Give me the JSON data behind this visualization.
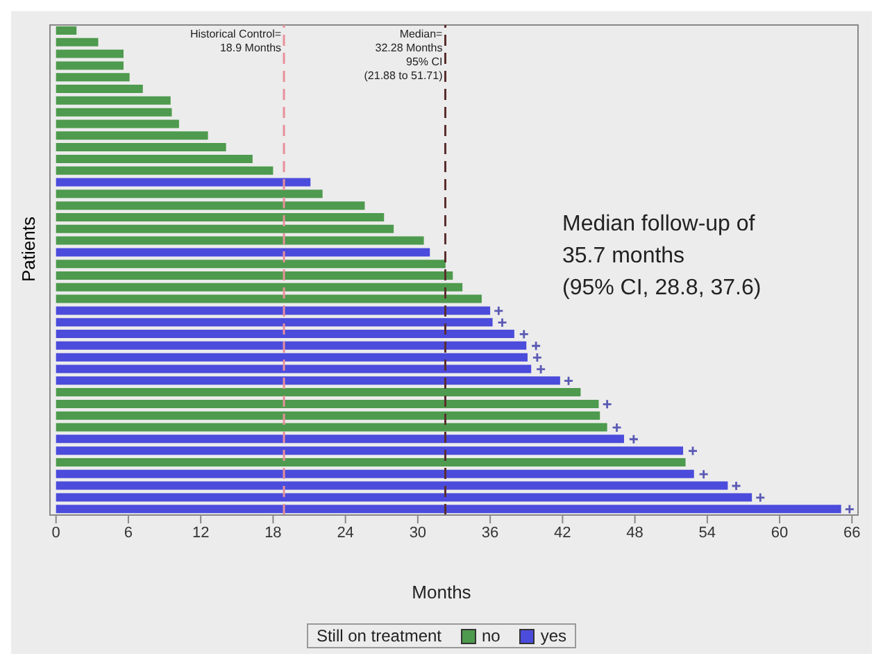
{
  "chart_data": {
    "type": "bar",
    "orientation": "horizontal",
    "xlabel": "Months",
    "ylabel": "Patients",
    "legend_title": "Still on treatment",
    "legend": "bottom",
    "categories": [
      null,
      null,
      null,
      null,
      null,
      null,
      null,
      null,
      null,
      null,
      null,
      null,
      null,
      null,
      null,
      null,
      null,
      null,
      null,
      null,
      null,
      null,
      null,
      null,
      null,
      null,
      null,
      null,
      null,
      null,
      null,
      null,
      null,
      null,
      null,
      null,
      null,
      null,
      null,
      null,
      null,
      null
    ],
    "xlim": [
      -0.5,
      66.5
    ],
    "xticks": [
      0,
      6,
      12,
      18,
      24,
      30,
      36,
      42,
      48,
      54,
      60,
      66
    ],
    "series": [
      {
        "name": "no",
        "color": "#4e9a4e",
        "values": [
          1.7,
          3.5,
          5.6,
          5.6,
          6.1,
          7.2,
          9.5,
          9.6,
          10.2,
          12.6,
          14.1,
          16.3,
          18.0,
          null,
          22.1,
          25.6,
          27.2,
          28.0,
          30.5,
          null,
          32.3,
          32.9,
          33.7,
          35.3,
          null,
          null,
          null,
          null,
          null,
          null,
          null,
          43.5,
          45.0,
          45.1,
          45.7,
          null,
          null,
          52.2,
          null,
          null,
          null,
          null
        ]
      },
      {
        "name": "yes",
        "color": "#4b4bdc",
        "values": [
          null,
          null,
          null,
          null,
          null,
          null,
          null,
          null,
          null,
          null,
          null,
          null,
          null,
          21.1,
          null,
          null,
          null,
          null,
          null,
          31.0,
          null,
          null,
          null,
          null,
          36.0,
          36.2,
          38.0,
          39.0,
          39.1,
          39.4,
          41.8,
          null,
          null,
          null,
          null,
          47.1,
          52.0,
          null,
          52.9,
          55.7,
          57.7,
          65.1
        ]
      },
      {
        "type": "scatter",
        "marker": "cross",
        "color": "#5a5ab4",
        "values": [
          null,
          null,
          null,
          null,
          null,
          null,
          null,
          null,
          null,
          null,
          null,
          null,
          null,
          null,
          null,
          null,
          null,
          null,
          null,
          null,
          null,
          null,
          null,
          null,
          36.7,
          37.0,
          38.8,
          39.8,
          39.9,
          40.2,
          42.5,
          null,
          45.7,
          null,
          46.5,
          47.9,
          52.8,
          null,
          53.7,
          56.4,
          58.4,
          65.8
        ]
      }
    ],
    "ref_lines": [
      {
        "axis": "x",
        "value": 18.9,
        "label": "Historical Control=\n18.9 Months",
        "color": "#e8909a",
        "line_style": "dashed"
      },
      {
        "axis": "x",
        "value": 32.28,
        "label": "Median=\n32.28 Months\n95% CI\n(21.88 to 51.71)",
        "color": "#5a2e2e",
        "line_style": "dashed"
      }
    ],
    "annotations": [
      "Median follow-up of\n35.7 months\n(95% CI, 28.8, 37.6)"
    ]
  }
}
